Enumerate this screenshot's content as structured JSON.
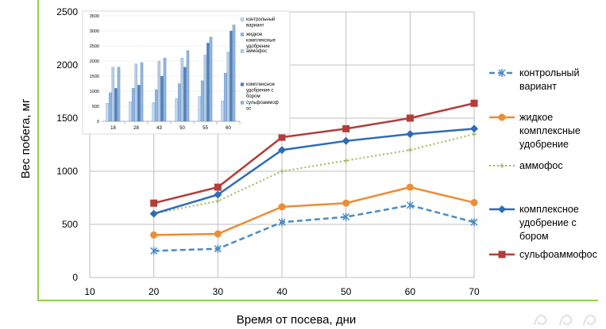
{
  "chart_data": [
    {
      "type": "line",
      "title": "",
      "xlabel": "Время от посева, дни",
      "ylabel": "Вес побега, мг",
      "x_ticks": [
        10,
        20,
        30,
        40,
        50,
        60,
        70
      ],
      "y_ticks": [
        0,
        500,
        1000,
        1500,
        2000,
        2500
      ],
      "xlim": [
        10,
        70
      ],
      "ylim": [
        0,
        2500
      ],
      "grid": true,
      "legend": "right",
      "x": [
        20,
        30,
        40,
        50,
        60,
        70
      ],
      "series": [
        {
          "name": "контрольный вариант",
          "color": "#4a8bc4",
          "dash": "dashed",
          "marker": "star",
          "values": [
            250,
            270,
            520,
            570,
            680,
            520
          ]
        },
        {
          "name": "жидкое комплексные удобрение",
          "color": "#ee8c34",
          "dash": "solid",
          "marker": "circle",
          "values": [
            400,
            410,
            665,
            700,
            850,
            705
          ]
        },
        {
          "name": "аммофос",
          "color": "#9bbb59",
          "dash": "dotted",
          "marker": "plus",
          "values": [
            600,
            720,
            1000,
            1100,
            1200,
            1350
          ]
        },
        {
          "name": "комплексное удобрение с бором",
          "color": "#2e6cb4",
          "dash": "solid",
          "marker": "diamond",
          "values": [
            600,
            780,
            1200,
            1285,
            1350,
            1400
          ]
        },
        {
          "name": "сульфоаммофос",
          "color": "#b23d3a",
          "dash": "solid",
          "marker": "square",
          "values": [
            700,
            850,
            1320,
            1400,
            1500,
            1640
          ]
        }
      ]
    },
    {
      "type": "bar",
      "categories": [
        "18",
        "28",
        "43",
        "50",
        "55",
        "60"
      ],
      "y_ticks": [
        0,
        500,
        1000,
        1500,
        2000,
        2500,
        3000,
        3500
      ],
      "ylim": [
        0,
        3500
      ],
      "legend": "right",
      "series": [
        {
          "name": "контрольный вариант",
          "values": [
            600,
            650,
            620,
            750,
            820,
            680
          ]
        },
        {
          "name": "жидкое комплексные удобрение",
          "values": [
            950,
            1100,
            1050,
            1250,
            1350,
            1600
          ]
        },
        {
          "name": "аммофос",
          "values": [
            1800,
            1900,
            2000,
            2100,
            2200,
            2300
          ]
        },
        {
          "name": "комплексное удобрение с бором",
          "values": [
            1100,
            1200,
            1500,
            1800,
            2600,
            3000
          ]
        },
        {
          "name": "сульфоаммофос",
          "values": [
            1800,
            1950,
            2100,
            2350,
            2800,
            3200
          ]
        }
      ],
      "colors": [
        "#c5d9f1",
        "#8db4e2",
        "#b8cce4",
        "#4f81bd",
        "#95b3d7"
      ]
    }
  ]
}
